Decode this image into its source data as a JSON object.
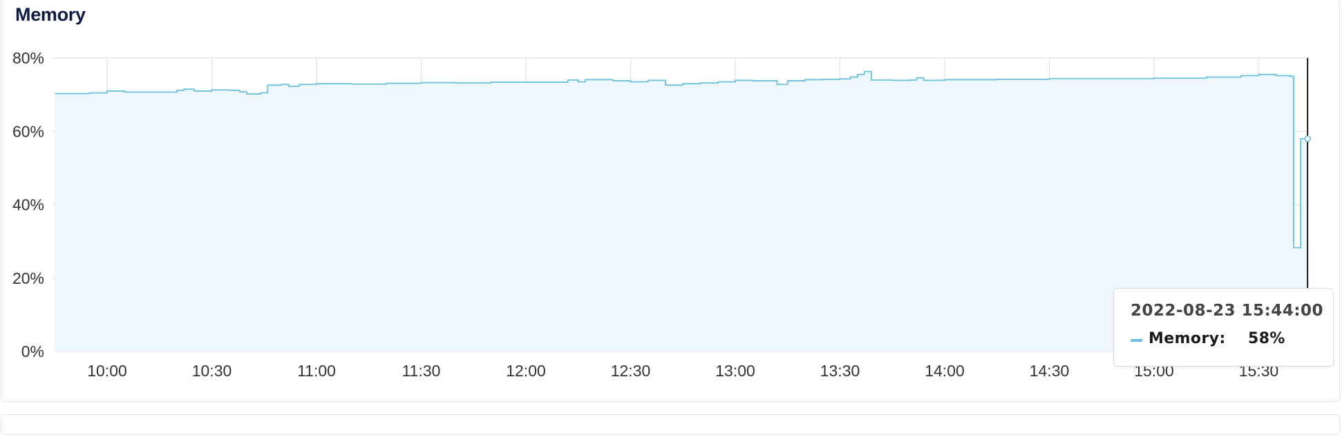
{
  "panel": {
    "title": "Memory"
  },
  "chart_data": {
    "type": "area",
    "title": "Memory",
    "xlabel": "",
    "ylabel": "",
    "ylim": [
      0,
      80
    ],
    "y_tick_labels": [
      "0%",
      "20%",
      "40%",
      "60%",
      "80%"
    ],
    "x_tick_labels": [
      "10:00",
      "10:30",
      "11:00",
      "11:30",
      "12:00",
      "12:30",
      "13:00",
      "13:30",
      "14:00",
      "14:30",
      "15:00",
      "15:30"
    ],
    "grid": true,
    "colors": {
      "line": "#69c1dd",
      "fill": "#eef7fc",
      "grid": "#dde3e8",
      "cursor": "#000000"
    },
    "series": [
      {
        "name": "Memory",
        "points": [
          [
            "09:45",
            70.3
          ],
          [
            "09:55",
            70.5
          ],
          [
            "10:00",
            71.0
          ],
          [
            "10:05",
            70.7
          ],
          [
            "10:15",
            70.7
          ],
          [
            "10:20",
            71.2
          ],
          [
            "10:22",
            71.5
          ],
          [
            "10:25",
            71.0
          ],
          [
            "10:30",
            71.3
          ],
          [
            "10:35",
            71.2
          ],
          [
            "10:38",
            70.8
          ],
          [
            "10:40",
            70.2
          ],
          [
            "10:44",
            70.5
          ],
          [
            "10:46",
            72.6
          ],
          [
            "10:50",
            72.8
          ],
          [
            "10:52",
            72.3
          ],
          [
            "10:55",
            72.8
          ],
          [
            "11:00",
            73.0
          ],
          [
            "11:05",
            73.0
          ],
          [
            "11:10",
            72.9
          ],
          [
            "11:20",
            73.1
          ],
          [
            "11:30",
            73.3
          ],
          [
            "11:40",
            73.2
          ],
          [
            "11:50",
            73.4
          ],
          [
            "12:00",
            73.4
          ],
          [
            "12:10",
            73.4
          ],
          [
            "12:12",
            74.0
          ],
          [
            "12:15",
            73.5
          ],
          [
            "12:17",
            74.1
          ],
          [
            "12:25",
            73.8
          ],
          [
            "12:30",
            73.5
          ],
          [
            "12:35",
            73.9
          ],
          [
            "12:40",
            72.6
          ],
          [
            "12:45",
            73.0
          ],
          [
            "12:50",
            73.2
          ],
          [
            "12:55",
            73.5
          ],
          [
            "13:00",
            73.9
          ],
          [
            "13:05",
            73.8
          ],
          [
            "13:12",
            72.8
          ],
          [
            "13:15",
            73.8
          ],
          [
            "13:20",
            74.1
          ],
          [
            "13:25",
            74.2
          ],
          [
            "13:30",
            74.3
          ],
          [
            "13:33",
            74.8
          ],
          [
            "13:35",
            75.5
          ],
          [
            "13:37",
            76.3
          ],
          [
            "13:39",
            74.0
          ],
          [
            "13:45",
            73.9
          ],
          [
            "13:50",
            74.0
          ],
          [
            "13:52",
            74.6
          ],
          [
            "13:54",
            73.9
          ],
          [
            "14:00",
            74.1
          ],
          [
            "14:15",
            74.2
          ],
          [
            "14:30",
            74.4
          ],
          [
            "14:45",
            74.4
          ],
          [
            "15:00",
            74.5
          ],
          [
            "15:15",
            74.8
          ],
          [
            "15:25",
            75.2
          ],
          [
            "15:30",
            75.5
          ],
          [
            "15:35",
            75.2
          ],
          [
            "15:39",
            75.0
          ],
          [
            "15:40",
            28.3
          ],
          [
            "15:42",
            58.0
          ],
          [
            "15:44",
            58.0
          ]
        ]
      }
    ],
    "cursor_time": "15:44"
  },
  "tooltip": {
    "timestamp": "2022-08-23 15:44:00",
    "series_label": "Memory:",
    "value": "58%"
  }
}
